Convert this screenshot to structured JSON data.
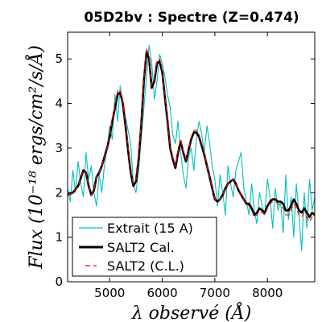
{
  "chart_data": {
    "type": "line",
    "title": "05D2bv : Spectre (Z=0.474)",
    "xlabel": "λ observé (Å)",
    "ylabel": "Flux (10⁻¹⁸ ergs/cm²/s/Å)",
    "xlim": [
      4200,
      8900
    ],
    "ylim": [
      0,
      5.6
    ],
    "x_ticks": [
      5000,
      6000,
      7000,
      8000
    ],
    "x_tick_labels": [
      "5000",
      "6000",
      "7000",
      "8000"
    ],
    "y_ticks": [
      0,
      1,
      2,
      3,
      4,
      5
    ],
    "y_tick_labels": [
      "0",
      "1",
      "2",
      "3",
      "4",
      "5"
    ],
    "grid": false,
    "legend_position": "lower-left",
    "series": [
      {
        "name": "Extrait (15 A)",
        "color": "#00bfbf",
        "style": "solid-thin",
        "x": [
          4200,
          4250,
          4300,
          4350,
          4400,
          4450,
          4500,
          4550,
          4600,
          4650,
          4700,
          4750,
          4800,
          4850,
          4900,
          4950,
          5000,
          5050,
          5100,
          5150,
          5200,
          5250,
          5300,
          5350,
          5400,
          5450,
          5500,
          5550,
          5600,
          5650,
          5700,
          5750,
          5800,
          5850,
          5900,
          5950,
          6000,
          6050,
          6100,
          6150,
          6200,
          6250,
          6300,
          6350,
          6400,
          6450,
          6500,
          6550,
          6600,
          6650,
          6700,
          6750,
          6800,
          6850,
          6900,
          6950,
          7000,
          7050,
          7100,
          7150,
          7200,
          7250,
          7300,
          7350,
          7400,
          7450,
          7500,
          7550,
          7600,
          7650,
          7700,
          7750,
          7800,
          7850,
          7900,
          7950,
          8000,
          8050,
          8100,
          8150,
          8200,
          8250,
          8300,
          8350,
          8400,
          8450,
          8500,
          8550,
          8600,
          8650,
          8700,
          8750,
          8800,
          8850,
          8900
        ],
        "y": [
          2.1,
          1.8,
          2.5,
          2.0,
          2.7,
          2.2,
          1.9,
          2.9,
          2.3,
          2.6,
          2.0,
          1.7,
          2.4,
          2.0,
          2.6,
          3.0,
          3.5,
          3.2,
          4.2,
          3.6,
          4.4,
          3.9,
          3.7,
          3.4,
          3.1,
          2.2,
          2.0,
          2.5,
          3.2,
          3.9,
          4.6,
          5.3,
          4.9,
          4.1,
          4.5,
          5.1,
          4.9,
          4.6,
          4.2,
          3.9,
          3.3,
          3.1,
          3.6,
          2.9,
          2.4,
          2.1,
          2.8,
          3.0,
          2.5,
          3.2,
          3.6,
          3.3,
          2.9,
          3.5,
          3.1,
          2.6,
          2.3,
          1.7,
          2.4,
          2.0,
          1.5,
          2.6,
          2.2,
          1.9,
          2.5,
          2.7,
          2.9,
          2.1,
          1.8,
          1.5,
          2.2,
          1.6,
          1.3,
          2.0,
          1.7,
          1.5,
          2.3,
          1.9,
          1.2,
          2.1,
          1.6,
          1.8,
          1.1,
          2.4,
          1.4,
          1.9,
          1.0,
          2.2,
          1.5,
          0.7,
          2.0,
          1.2,
          2.3,
          1.6,
          1.9
        ]
      },
      {
        "name": "SALT2 Cal.",
        "color": "#000000",
        "style": "solid-thick",
        "x": [
          4200,
          4300,
          4400,
          4500,
          4550,
          4600,
          4650,
          4700,
          4750,
          4800,
          4850,
          4900,
          4950,
          5000,
          5050,
          5100,
          5150,
          5200,
          5250,
          5300,
          5350,
          5400,
          5450,
          5500,
          5550,
          5600,
          5650,
          5700,
          5750,
          5800,
          5850,
          5900,
          5950,
          6000,
          6050,
          6100,
          6150,
          6200,
          6250,
          6300,
          6350,
          6400,
          6450,
          6500,
          6550,
          6600,
          6650,
          6700,
          6750,
          6800,
          6850,
          6900,
          6950,
          7000,
          7050,
          7100,
          7150,
          7200,
          7250,
          7300,
          7350,
          7400,
          7450,
          7500,
          7550,
          7600,
          7650,
          7700,
          7750,
          7800,
          7850,
          7900,
          7950,
          8000,
          8050,
          8100,
          8150,
          8200,
          8250,
          8300,
          8350,
          8400,
          8450,
          8500,
          8550,
          8600,
          8650,
          8700,
          8750,
          8800,
          8850,
          8900
        ],
        "y": [
          1.95,
          2.0,
          2.15,
          2.5,
          2.45,
          2.15,
          1.95,
          2.05,
          2.35,
          2.45,
          2.6,
          2.8,
          3.0,
          3.25,
          3.6,
          3.9,
          4.2,
          4.25,
          4.0,
          3.5,
          2.95,
          2.45,
          2.15,
          2.25,
          2.75,
          3.5,
          4.5,
          5.15,
          5.0,
          4.35,
          4.5,
          4.9,
          4.95,
          4.7,
          4.15,
          3.6,
          3.0,
          2.75,
          2.55,
          2.9,
          3.15,
          2.9,
          2.7,
          2.95,
          3.2,
          3.35,
          3.35,
          3.25,
          3.05,
          2.85,
          2.6,
          2.35,
          2.1,
          1.85,
          1.8,
          1.85,
          1.95,
          2.1,
          2.2,
          2.25,
          2.3,
          2.2,
          2.05,
          1.95,
          1.85,
          1.75,
          1.75,
          1.65,
          1.5,
          1.55,
          1.65,
          1.6,
          1.55,
          1.7,
          1.8,
          1.85,
          1.85,
          1.8,
          1.8,
          1.75,
          1.6,
          1.6,
          1.7,
          1.85,
          1.75,
          1.6,
          1.55,
          1.65,
          1.55,
          1.45,
          1.55,
          1.5
        ]
      },
      {
        "name": "SALT2 (C.L.)",
        "color": "#ff0000",
        "style": "dashed",
        "x": [
          4200,
          4300,
          4400,
          4500,
          4550,
          4600,
          4650,
          4700,
          4750,
          4800,
          4850,
          4900,
          4950,
          5000,
          5050,
          5100,
          5150,
          5200,
          5250,
          5300,
          5350,
          5400,
          5450,
          5500,
          5550,
          5600,
          5650,
          5700,
          5750,
          5800,
          5850,
          5900,
          5950,
          6000,
          6050,
          6100,
          6150,
          6200,
          6250,
          6300,
          6350,
          6400,
          6450,
          6500,
          6550,
          6600,
          6650,
          6700,
          6750,
          6800,
          6850,
          6900,
          6950,
          7000,
          7050,
          7100,
          7150,
          7200,
          7250,
          7300,
          7350,
          7400,
          7450,
          7500,
          7550,
          7600,
          7650,
          7700,
          7750,
          7800,
          7850,
          7900,
          7950,
          8000,
          8050,
          8100,
          8150,
          8200,
          8250,
          8300,
          8350,
          8400,
          8450,
          8500,
          8550,
          8600,
          8650,
          8700,
          8750,
          8800,
          8850,
          8900
        ],
        "y": [
          1.95,
          2.0,
          2.15,
          2.5,
          2.45,
          2.15,
          1.95,
          2.05,
          2.35,
          2.45,
          2.6,
          2.8,
          3.0,
          3.25,
          3.65,
          3.95,
          4.3,
          4.3,
          4.05,
          3.55,
          3.0,
          2.5,
          2.2,
          2.3,
          2.8,
          3.55,
          4.55,
          5.25,
          5.05,
          4.4,
          4.55,
          4.95,
          5.0,
          4.75,
          4.2,
          3.65,
          3.05,
          2.8,
          2.6,
          2.95,
          3.2,
          2.95,
          2.75,
          3.0,
          3.25,
          3.4,
          3.4,
          3.3,
          3.1,
          2.9,
          2.6,
          2.35,
          2.1,
          1.85,
          1.8,
          1.85,
          1.95,
          2.1,
          2.2,
          2.25,
          2.3,
          2.2,
          2.05,
          1.95,
          1.85,
          1.75,
          1.7,
          1.6,
          1.45,
          1.5,
          1.6,
          1.55,
          1.5,
          1.65,
          1.75,
          1.8,
          1.8,
          1.75,
          1.7,
          1.65,
          1.5,
          1.5,
          1.6,
          1.75,
          1.65,
          1.5,
          1.45,
          1.55,
          1.45,
          1.35,
          1.45,
          1.4
        ]
      }
    ]
  }
}
